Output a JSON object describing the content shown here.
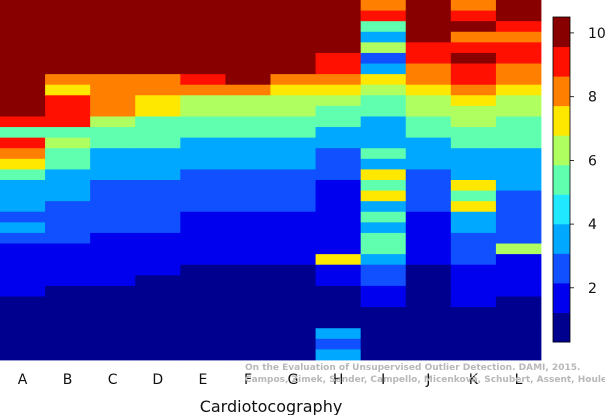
{
  "chart_data": {
    "type": "heatmap",
    "title": "",
    "xlabel": "Cardiotocography",
    "ylabel": "",
    "categories": [
      "A",
      "B",
      "C",
      "D",
      "E",
      "F",
      "G",
      "H",
      "I",
      "J",
      "K",
      "L"
    ],
    "rows_per_column": 34,
    "colorbar": {
      "ticks": [
        2,
        4,
        6,
        8,
        10
      ],
      "range": [
        0.3,
        10.5
      ]
    },
    "values": [
      [
        10,
        10,
        10,
        10,
        10,
        10,
        10,
        10,
        10,
        10,
        10,
        9,
        5,
        9,
        8,
        7,
        5,
        4,
        4,
        4,
        3,
        4,
        3,
        2,
        2,
        2,
        2,
        2,
        1,
        1,
        1,
        1,
        1,
        1
      ],
      [
        10,
        10,
        10,
        10,
        10,
        10,
        10,
        8,
        7,
        9,
        9,
        9,
        5,
        6,
        5,
        5,
        4,
        4,
        4,
        3,
        3,
        3,
        3,
        2,
        2,
        2,
        2,
        1,
        1,
        1,
        1,
        1,
        1,
        1
      ],
      [
        10,
        10,
        10,
        10,
        10,
        10,
        10,
        8,
        8,
        8,
        8,
        6,
        5,
        5,
        4,
        4,
        4,
        3,
        3,
        3,
        3,
        3,
        2,
        2,
        2,
        2,
        2,
        1,
        1,
        1,
        1,
        1,
        1,
        1
      ],
      [
        10,
        10,
        10,
        10,
        10,
        10,
        10,
        8,
        8,
        7,
        7,
        5,
        5,
        5,
        4,
        4,
        4,
        3,
        3,
        3,
        3,
        3,
        2,
        2,
        2,
        2,
        1,
        1,
        1,
        1,
        1,
        1,
        1,
        1
      ],
      [
        10,
        10,
        10,
        10,
        10,
        10,
        10,
        9,
        8,
        6,
        6,
        5,
        5,
        4,
        4,
        4,
        3,
        3,
        3,
        3,
        2,
        2,
        2,
        2,
        2,
        1,
        1,
        1,
        1,
        1,
        1,
        1,
        1,
        1
      ],
      [
        10,
        10,
        10,
        10,
        10,
        10,
        10,
        10,
        8,
        6,
        6,
        5,
        5,
        4,
        4,
        4,
        3,
        3,
        3,
        3,
        2,
        2,
        2,
        2,
        2,
        1,
        1,
        1,
        1,
        1,
        1,
        1,
        1,
        1
      ],
      [
        10,
        10,
        10,
        10,
        10,
        10,
        10,
        8,
        7,
        6,
        6,
        5,
        5,
        4,
        4,
        4,
        3,
        3,
        3,
        3,
        2,
        2,
        2,
        2,
        2,
        1,
        1,
        1,
        1,
        1,
        1,
        1,
        1,
        1
      ],
      [
        10,
        10,
        10,
        10,
        10,
        9,
        9,
        8,
        7,
        6,
        5,
        5,
        4,
        4,
        3,
        3,
        3,
        2,
        2,
        2,
        2,
        2,
        2,
        2,
        7,
        2,
        2,
        1,
        1,
        1,
        1,
        4,
        3,
        4
      ],
      [
        8,
        9,
        5,
        4,
        6,
        3,
        4,
        7,
        6,
        5,
        5,
        4,
        4,
        4,
        5,
        4,
        7,
        5,
        7,
        4,
        5,
        4,
        5,
        5,
        4,
        3,
        3,
        2,
        2,
        1,
        1,
        1,
        1,
        1
      ],
      [
        10,
        10,
        10,
        10,
        9,
        9,
        8,
        8,
        7,
        6,
        6,
        5,
        5,
        4,
        4,
        4,
        3,
        3,
        3,
        3,
        2,
        2,
        2,
        2,
        2,
        1,
        1,
        1,
        1,
        1,
        1,
        1,
        1,
        1
      ],
      [
        8,
        9,
        10,
        8,
        9,
        10,
        9,
        9,
        8,
        7,
        6,
        6,
        5,
        5,
        4,
        4,
        4,
        7,
        5,
        7,
        4,
        4,
        3,
        3,
        3,
        2,
        2,
        2,
        2,
        1,
        1,
        1,
        1,
        1
      ],
      [
        10,
        10,
        9,
        8,
        9,
        9,
        8,
        8,
        7,
        6,
        6,
        5,
        5,
        5,
        4,
        4,
        4,
        4,
        3,
        3,
        3,
        3,
        3,
        6,
        2,
        2,
        2,
        2,
        1,
        1,
        1,
        1,
        1,
        1
      ]
    ]
  },
  "watermark": {
    "line1": "On the Evaluation of Unsupervised Outlier Detection. DAMI, 2015.",
    "line2": "Campos, Zimek, Sander, Campello, Micenková, Schubert, Assent, Houle"
  }
}
